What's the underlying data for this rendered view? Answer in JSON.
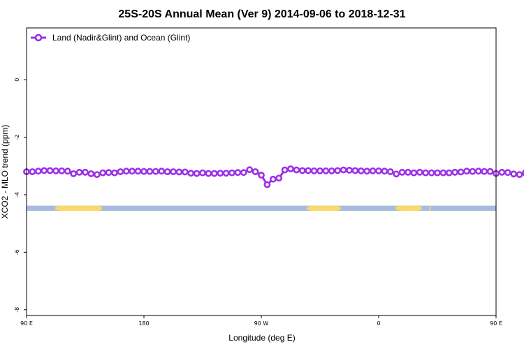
{
  "chart_data": {
    "type": "line",
    "title": "25S-20S Annual Mean (Ver 9)   2014-09-06 to 2018-12-31",
    "xlabel": "Longitude (deg E)",
    "ylabel": "XCO2 - MLO trend (ppm)",
    "xlim": [
      90,
      450
    ],
    "ylim": [
      -8.2,
      1.8
    ],
    "x_ticks": [
      {
        "value": 90,
        "label": "90 E"
      },
      {
        "value": 180,
        "label": "180"
      },
      {
        "value": 270,
        "label": "90 W"
      },
      {
        "value": 360,
        "label": "0"
      },
      {
        "value": 450,
        "label": "90 E"
      },
      {
        "value": 540,
        "label": "180"
      }
    ],
    "y_ticks": [
      {
        "value": 0,
        "label": "0"
      },
      {
        "value": -2,
        "label": "-2"
      },
      {
        "value": -4,
        "label": "-4"
      },
      {
        "value": -6,
        "label": "-6"
      },
      {
        "value": -8,
        "label": "-8"
      }
    ],
    "grid": false,
    "legend": {
      "position": "top-left"
    },
    "series": [
      {
        "name": "Land (Nadir&Glint) and Ocean (Glint)",
        "color": "#9b30e8",
        "x_start": 90,
        "x_step": 4.5,
        "values": [
          -3.2,
          -3.2,
          -3.18,
          -3.16,
          -3.16,
          -3.17,
          -3.17,
          -3.18,
          -3.27,
          -3.22,
          -3.22,
          -3.27,
          -3.3,
          -3.24,
          -3.23,
          -3.24,
          -3.2,
          -3.18,
          -3.18,
          -3.18,
          -3.19,
          -3.19,
          -3.19,
          -3.18,
          -3.2,
          -3.2,
          -3.21,
          -3.21,
          -3.25,
          -3.26,
          -3.24,
          -3.26,
          -3.26,
          -3.25,
          -3.25,
          -3.24,
          -3.23,
          -3.23,
          -3.13,
          -3.2,
          -3.32,
          -3.65,
          -3.46,
          -3.42,
          -3.14,
          -3.1,
          -3.14,
          -3.16,
          -3.16,
          -3.17,
          -3.17,
          -3.17,
          -3.17,
          -3.16,
          -3.14,
          -3.15,
          -3.16,
          -3.17,
          -3.18,
          -3.17,
          -3.17,
          -3.18,
          -3.2,
          -3.28,
          -3.22,
          -3.22,
          -3.24,
          -3.22,
          -3.24,
          -3.24,
          -3.24,
          -3.24,
          -3.24,
          -3.22,
          -3.21,
          -3.18,
          -3.19,
          -3.18,
          -3.19,
          -3.19,
          -3.26,
          -3.22,
          -3.23,
          -3.28,
          -3.3,
          -3.24,
          -3.22,
          -3.24,
          -3.22,
          -3.2,
          -3.18,
          -3.18
        ]
      }
    ],
    "map_strip": {
      "y_top": -4.38,
      "y_bottom": -4.56,
      "ocean_color": "#a7bcdc",
      "land_color": "#f9d96f",
      "land_segments": [
        [
          112,
          148
        ],
        [
          305,
          331
        ],
        [
          373,
          393
        ],
        [
          399,
          400
        ],
        [
          480,
          509
        ]
      ]
    }
  }
}
